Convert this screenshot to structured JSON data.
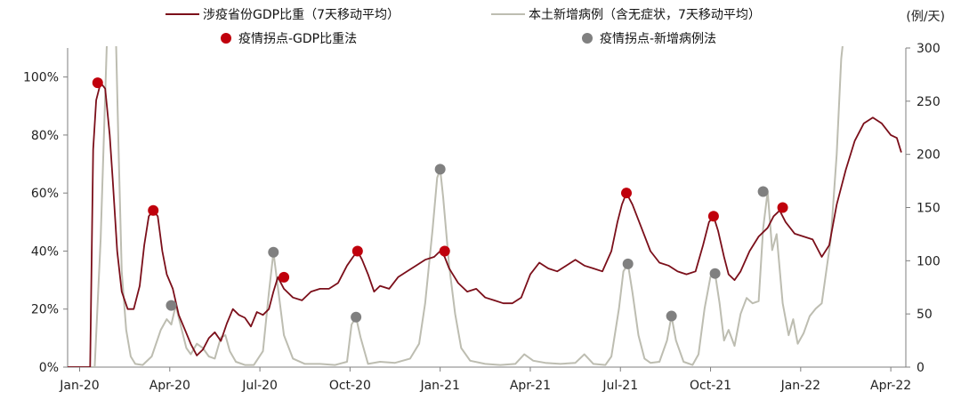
{
  "chart_data": {
    "type": "line",
    "legend": {
      "placement": "top",
      "entries": [
        {
          "key": "gdp_share",
          "label": "涉疫省份GDP比重（7天移动平均）",
          "kind": "line",
          "color": "#7B0F1A"
        },
        {
          "key": "new_cases",
          "label": "本土新增病例（含无症状，7天移动平均）",
          "kind": "line",
          "color": "#BDBDB1"
        },
        {
          "key": "gdp_turn",
          "label": "疫情拐点-GDP比重法",
          "kind": "dot",
          "color": "#C0000C"
        },
        {
          "key": "case_turn",
          "label": "疫情拐点-新增病例法",
          "kind": "dot",
          "color": "#808080"
        }
      ]
    },
    "x_axis": {
      "ticks": [
        {
          "label": "Jan-20",
          "t": 0
        },
        {
          "label": "Apr-20",
          "t": 3
        },
        {
          "label": "Jul-20",
          "t": 6
        },
        {
          "label": "Oct-20",
          "t": 9
        },
        {
          "label": "Jan-21",
          "t": 12
        },
        {
          "label": "Apr-21",
          "t": 15
        },
        {
          "label": "Jul-21",
          "t": 18
        },
        {
          "label": "Oct-21",
          "t": 21
        },
        {
          "label": "Jan-22",
          "t": 24
        },
        {
          "label": "Apr-22",
          "t": 27
        }
      ],
      "range": [
        -0.4,
        27.5
      ]
    },
    "y_left": {
      "ticks": [
        "0%",
        "20%",
        "40%",
        "60%",
        "80%",
        "100%"
      ],
      "tick_values": [
        0,
        20,
        40,
        60,
        80,
        100
      ],
      "range": [
        0,
        110
      ]
    },
    "y_right": {
      "unit": "(例/天)",
      "ticks": [
        "0",
        "50",
        "100",
        "150",
        "200",
        "250",
        "300"
      ],
      "tick_values": [
        0,
        50,
        100,
        150,
        200,
        250,
        300
      ],
      "range": [
        0,
        300
      ]
    },
    "grid": false,
    "series": [
      {
        "key": "gdp_share",
        "axis": "left",
        "points": [
          [
            -0.4,
            0
          ],
          [
            0.35,
            0
          ],
          [
            0.45,
            75
          ],
          [
            0.55,
            92
          ],
          [
            0.7,
            98
          ],
          [
            0.85,
            96
          ],
          [
            1.0,
            80
          ],
          [
            1.1,
            65
          ],
          [
            1.25,
            40
          ],
          [
            1.4,
            26
          ],
          [
            1.6,
            20
          ],
          [
            1.8,
            20
          ],
          [
            2.0,
            28
          ],
          [
            2.15,
            42
          ],
          [
            2.3,
            52
          ],
          [
            2.45,
            54
          ],
          [
            2.6,
            52
          ],
          [
            2.75,
            40
          ],
          [
            2.9,
            32
          ],
          [
            3.1,
            27
          ],
          [
            3.3,
            18
          ],
          [
            3.5,
            13
          ],
          [
            3.7,
            8
          ],
          [
            3.9,
            4
          ],
          [
            4.1,
            6
          ],
          [
            4.3,
            10
          ],
          [
            4.5,
            12
          ],
          [
            4.7,
            9
          ],
          [
            4.9,
            15
          ],
          [
            5.1,
            20
          ],
          [
            5.3,
            18
          ],
          [
            5.5,
            17
          ],
          [
            5.7,
            14
          ],
          [
            5.9,
            19
          ],
          [
            6.1,
            18
          ],
          [
            6.3,
            20
          ],
          [
            6.45,
            26
          ],
          [
            6.6,
            31
          ],
          [
            6.8,
            27
          ],
          [
            7.1,
            24
          ],
          [
            7.4,
            23
          ],
          [
            7.7,
            26
          ],
          [
            8.0,
            27
          ],
          [
            8.3,
            27
          ],
          [
            8.6,
            29
          ],
          [
            8.9,
            35
          ],
          [
            9.1,
            38
          ],
          [
            9.25,
            40
          ],
          [
            9.4,
            37
          ],
          [
            9.6,
            32
          ],
          [
            9.8,
            26
          ],
          [
            10.0,
            28
          ],
          [
            10.3,
            27
          ],
          [
            10.6,
            31
          ],
          [
            10.9,
            33
          ],
          [
            11.2,
            35
          ],
          [
            11.5,
            37
          ],
          [
            11.8,
            38
          ],
          [
            12.0,
            40
          ],
          [
            12.15,
            38
          ],
          [
            12.3,
            34
          ],
          [
            12.6,
            29
          ],
          [
            12.9,
            26
          ],
          [
            13.2,
            27
          ],
          [
            13.5,
            24
          ],
          [
            13.8,
            23
          ],
          [
            14.1,
            22
          ],
          [
            14.4,
            22
          ],
          [
            14.7,
            24
          ],
          [
            15.0,
            32
          ],
          [
            15.3,
            36
          ],
          [
            15.6,
            34
          ],
          [
            15.9,
            33
          ],
          [
            16.2,
            35
          ],
          [
            16.5,
            37
          ],
          [
            16.8,
            35
          ],
          [
            17.1,
            34
          ],
          [
            17.4,
            33
          ],
          [
            17.7,
            40
          ],
          [
            17.9,
            50
          ],
          [
            18.05,
            56
          ],
          [
            18.2,
            60
          ],
          [
            18.4,
            56
          ],
          [
            18.7,
            48
          ],
          [
            19.0,
            40
          ],
          [
            19.3,
            36
          ],
          [
            19.6,
            35
          ],
          [
            19.9,
            33
          ],
          [
            20.2,
            32
          ],
          [
            20.5,
            33
          ],
          [
            20.75,
            42
          ],
          [
            20.95,
            50
          ],
          [
            21.1,
            52
          ],
          [
            21.25,
            47
          ],
          [
            21.45,
            38
          ],
          [
            21.6,
            32
          ],
          [
            21.8,
            30
          ],
          [
            22.0,
            33
          ],
          [
            22.3,
            40
          ],
          [
            22.6,
            45
          ],
          [
            22.9,
            48
          ],
          [
            23.1,
            52
          ],
          [
            23.3,
            54
          ],
          [
            23.5,
            50
          ],
          [
            23.8,
            46
          ],
          [
            24.1,
            45
          ],
          [
            24.4,
            44
          ],
          [
            24.7,
            38
          ],
          [
            24.95,
            42
          ],
          [
            25.2,
            56
          ],
          [
            25.5,
            68
          ],
          [
            25.8,
            78
          ],
          [
            26.1,
            84
          ],
          [
            26.4,
            86
          ],
          [
            26.7,
            84
          ],
          [
            27.0,
            80
          ],
          [
            27.2,
            79
          ],
          [
            27.35,
            74
          ]
        ]
      },
      {
        "key": "new_cases",
        "axis": "right",
        "points": [
          [
            -0.4,
            0
          ],
          [
            0.5,
            0
          ],
          [
            0.7,
            120
          ],
          [
            0.9,
            300
          ],
          [
            1.05,
            360
          ],
          [
            1.2,
            320
          ],
          [
            1.3,
            200
          ],
          [
            1.4,
            90
          ],
          [
            1.55,
            35
          ],
          [
            1.7,
            10
          ],
          [
            1.85,
            3
          ],
          [
            2.1,
            2
          ],
          [
            2.4,
            10
          ],
          [
            2.7,
            35
          ],
          [
            2.9,
            45
          ],
          [
            3.05,
            40
          ],
          [
            3.2,
            58
          ],
          [
            3.4,
            35
          ],
          [
            3.55,
            18
          ],
          [
            3.7,
            12
          ],
          [
            3.9,
            22
          ],
          [
            4.1,
            18
          ],
          [
            4.3,
            10
          ],
          [
            4.5,
            8
          ],
          [
            4.7,
            28
          ],
          [
            4.85,
            30
          ],
          [
            5.0,
            15
          ],
          [
            5.2,
            5
          ],
          [
            5.5,
            2
          ],
          [
            5.8,
            2
          ],
          [
            6.1,
            15
          ],
          [
            6.3,
            70
          ],
          [
            6.45,
            108
          ],
          [
            6.6,
            75
          ],
          [
            6.8,
            30
          ],
          [
            7.1,
            8
          ],
          [
            7.5,
            3
          ],
          [
            8.0,
            3
          ],
          [
            8.5,
            2
          ],
          [
            8.9,
            5
          ],
          [
            9.05,
            40
          ],
          [
            9.2,
            47
          ],
          [
            9.35,
            28
          ],
          [
            9.6,
            3
          ],
          [
            10.0,
            5
          ],
          [
            10.5,
            4
          ],
          [
            11.0,
            8
          ],
          [
            11.3,
            22
          ],
          [
            11.5,
            60
          ],
          [
            11.75,
            130
          ],
          [
            11.9,
            178
          ],
          [
            12.0,
            186
          ],
          [
            12.1,
            160
          ],
          [
            12.3,
            95
          ],
          [
            12.5,
            50
          ],
          [
            12.7,
            18
          ],
          [
            13.0,
            6
          ],
          [
            13.5,
            3
          ],
          [
            14.0,
            2
          ],
          [
            14.5,
            3
          ],
          [
            14.8,
            12
          ],
          [
            15.1,
            6
          ],
          [
            15.5,
            4
          ],
          [
            16.0,
            3
          ],
          [
            16.5,
            4
          ],
          [
            16.8,
            12
          ],
          [
            17.1,
            3
          ],
          [
            17.5,
            2
          ],
          [
            17.7,
            10
          ],
          [
            17.95,
            55
          ],
          [
            18.1,
            90
          ],
          [
            18.25,
            97
          ],
          [
            18.4,
            70
          ],
          [
            18.6,
            30
          ],
          [
            18.8,
            8
          ],
          [
            19.0,
            4
          ],
          [
            19.3,
            5
          ],
          [
            19.55,
            25
          ],
          [
            19.7,
            48
          ],
          [
            19.85,
            25
          ],
          [
            20.1,
            5
          ],
          [
            20.4,
            2
          ],
          [
            20.6,
            12
          ],
          [
            20.8,
            55
          ],
          [
            21.0,
            85
          ],
          [
            21.15,
            88
          ],
          [
            21.3,
            60
          ],
          [
            21.45,
            25
          ],
          [
            21.6,
            35
          ],
          [
            21.8,
            20
          ],
          [
            22.0,
            50
          ],
          [
            22.2,
            65
          ],
          [
            22.4,
            60
          ],
          [
            22.6,
            62
          ],
          [
            22.75,
            130
          ],
          [
            22.9,
            165
          ],
          [
            23.05,
            110
          ],
          [
            23.2,
            125
          ],
          [
            23.4,
            60
          ],
          [
            23.6,
            30
          ],
          [
            23.75,
            45
          ],
          [
            23.9,
            22
          ],
          [
            24.1,
            32
          ],
          [
            24.3,
            48
          ],
          [
            24.5,
            55
          ],
          [
            24.7,
            60
          ],
          [
            25.0,
            120
          ],
          [
            25.2,
            200
          ],
          [
            25.35,
            290
          ],
          [
            25.5,
            330
          ]
        ]
      }
    ],
    "annotations": {
      "gdp_turn": [
        [
          0.6,
          98
        ],
        [
          2.45,
          54
        ],
        [
          6.8,
          31
        ],
        [
          9.25,
          40
        ],
        [
          12.15,
          40
        ],
        [
          18.2,
          60
        ],
        [
          21.1,
          52
        ],
        [
          23.4,
          55
        ]
      ],
      "case_turn": [
        [
          3.05,
          58
        ],
        [
          6.45,
          108
        ],
        [
          9.2,
          47
        ],
        [
          12.0,
          186
        ],
        [
          18.25,
          97
        ],
        [
          19.7,
          48
        ],
        [
          21.15,
          88
        ],
        [
          22.75,
          165
        ]
      ]
    }
  }
}
